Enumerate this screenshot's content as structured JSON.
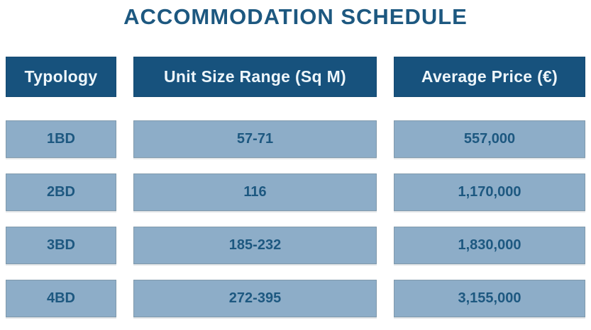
{
  "title": "ACCOMMODATION SCHEDULE",
  "colors": {
    "title_text": "#1d5880",
    "header_bg": "#17527d",
    "header_text": "#eef6fb",
    "cell_bg": "#8dadc8",
    "cell_border": "#7f99ac",
    "cell_text": "#1d5880",
    "page_bg": "#ffffff"
  },
  "table": {
    "headers": [
      "Typology",
      "Unit Size Range (Sq M)",
      "Average Price (€)"
    ],
    "rows": [
      {
        "typology": "1BD",
        "unit_size_range_sqm": "57-71",
        "average_price_eur": "557,000"
      },
      {
        "typology": "2BD",
        "unit_size_range_sqm": "116",
        "average_price_eur": "1,170,000"
      },
      {
        "typology": "3BD",
        "unit_size_range_sqm": "185-232",
        "average_price_eur": "1,830,000"
      },
      {
        "typology": "4BD",
        "unit_size_range_sqm": "272-395",
        "average_price_eur": "3,155,000"
      }
    ]
  },
  "chart_data": {
    "type": "table",
    "title": "ACCOMMODATION SCHEDULE",
    "columns": [
      "Typology",
      "Unit Size Range (Sq M)",
      "Average Price (€)"
    ],
    "rows": [
      [
        "1BD",
        "57-71",
        "557,000"
      ],
      [
        "2BD",
        "116",
        "1,170,000"
      ],
      [
        "3BD",
        "185-232",
        "1,830,000"
      ],
      [
        "4BD",
        "272-395",
        "3,155,000"
      ]
    ]
  }
}
